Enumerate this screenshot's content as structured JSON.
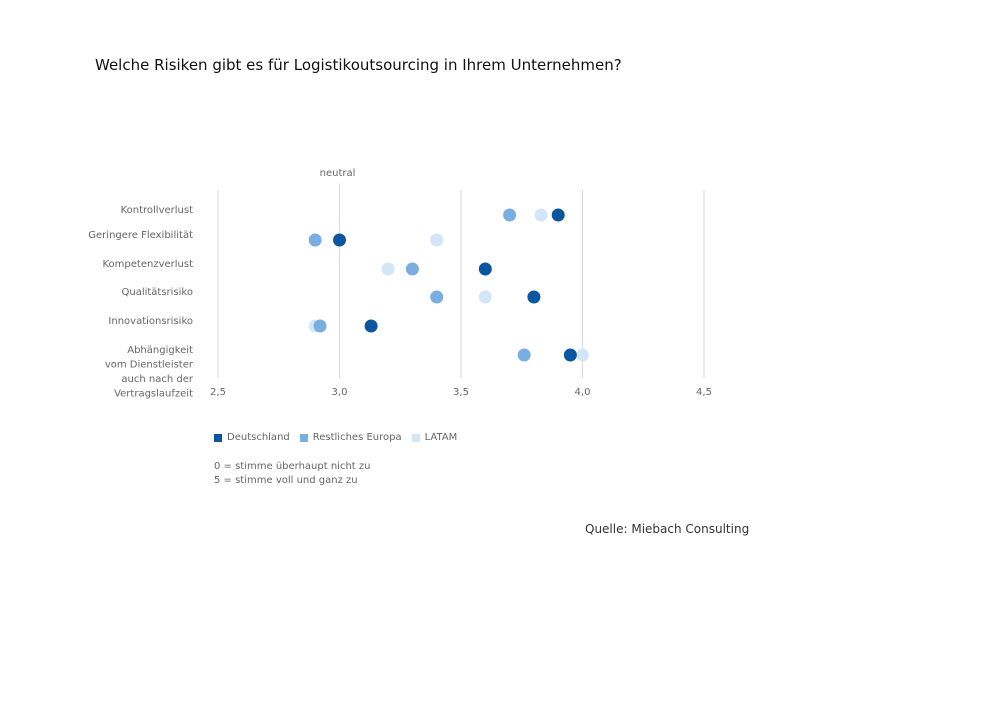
{
  "title": "Welche Risiken gibt es für Logistikoutsourcing in Ihrem Unternehmen?",
  "neutral_label": "neutral",
  "scale_note": [
    "0 = stimme überhaupt nicht zu",
    "5 = stimme voll und ganz zu"
  ],
  "source": "Quelle: Miebach Consulting",
  "colors": {
    "Deutschland": "#0b56a0",
    "Restliches Europa": "#7aaee0",
    "LATAM": "#d3e6f7",
    "grid": "#d9d9d9"
  },
  "chart_data": {
    "type": "scatter",
    "title": "Welche Risiken gibt es für Logistikoutsourcing in Ihrem Unternehmen?",
    "categories": [
      "Kontrollverlust",
      "Geringere Flexibilität",
      "Kompetenzverlust",
      "Qualitätsrisiko",
      "Innovationsrisiko",
      "Abhängigkeit vom Dienstleister auch nach der Vertragslaufzeit"
    ],
    "category_label_lines": [
      [
        "Kontrollverlust"
      ],
      [
        "Geringere Flexibilität"
      ],
      [
        "Kompetenzverlust"
      ],
      [
        "Qualitätsrisiko"
      ],
      [
        "Innovationsrisiko"
      ],
      [
        "Abhängigkeit",
        "vom Dienstleister",
        "auch nach der",
        "Vertragslaufzeit"
      ]
    ],
    "x_ticks": [
      2.5,
      3.0,
      3.5,
      4.0,
      4.5
    ],
    "x_tick_labels": [
      "2,5",
      "3,0",
      "3,5",
      "4,0",
      "4,5"
    ],
    "xlim": [
      2.5,
      4.5
    ],
    "neutral_value": 3.0,
    "grid": true,
    "legend_position": "bottom-left",
    "series": [
      {
        "name": "Deutschland",
        "values": [
          3.9,
          3.0,
          3.6,
          3.8,
          3.13,
          3.95
        ]
      },
      {
        "name": "Restliches Europa",
        "values": [
          3.7,
          2.9,
          3.3,
          3.4,
          2.92,
          3.76
        ]
      },
      {
        "name": "LATAM",
        "values": [
          3.83,
          3.4,
          3.2,
          3.6,
          2.9,
          4.0
        ]
      }
    ]
  }
}
